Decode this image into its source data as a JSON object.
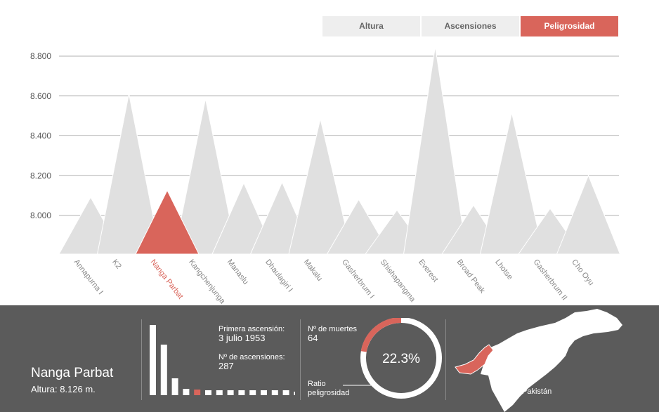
{
  "tabs": [
    {
      "label": "Altura",
      "active": false
    },
    {
      "label": "Ascensiones",
      "active": false
    },
    {
      "label": "Peligrosidad",
      "active": true
    }
  ],
  "colors": {
    "highlight": "#d9655b",
    "mountain": "#e0e0e0",
    "panel": "#5b5b5b",
    "bars": "#ffffff"
  },
  "chart_data": {
    "type": "area",
    "ylim": [
      7800,
      8850
    ],
    "yticks": [
      "8.000",
      "8.200",
      "8.400",
      "8.600",
      "8.800"
    ],
    "ytick_values": [
      8000,
      8200,
      8400,
      8600,
      8800
    ],
    "grid": true,
    "highlighted": "Nanga Parbat",
    "categories": [
      "Annapurna I",
      "K2",
      "Nanga Parbat",
      "Kangchenjunga",
      "Manaslu",
      "Dhaulagiri I",
      "Makalu",
      "Gasherbrum I",
      "Shishapangma",
      "Everest",
      "Broad Peak",
      "Lhotse",
      "Gasherbrum II",
      "Cho Oyu"
    ],
    "values": [
      8091,
      8611,
      8126,
      8586,
      8163,
      8167,
      8485,
      8080,
      8027,
      8848,
      8051,
      8516,
      8035,
      8201
    ]
  },
  "detail": {
    "name": "Nanga Parbat",
    "altura_label": "Altura:",
    "altura_value": "8.126 m.",
    "first_ascent_label": "Primera ascensión:",
    "first_ascent_value": "3 julio 1953",
    "ascents_label": "Nº de ascensiones:",
    "ascents_value": "287",
    "deaths_label": "Nº de muertes",
    "deaths_value": "64",
    "ratio_label_1": "Ratio",
    "ratio_label_2": "peligrosidad",
    "ratio_value": "22.3%",
    "ratio_fraction": 0.223,
    "country": "Pakistán",
    "mini_bars": [
      1.0,
      0.72,
      0.24,
      0.09,
      0.08,
      0.07,
      0.07,
      0.07,
      0.07,
      0.07,
      0.07,
      0.07,
      0.07,
      0.05
    ],
    "mini_highlight_index": 4
  }
}
